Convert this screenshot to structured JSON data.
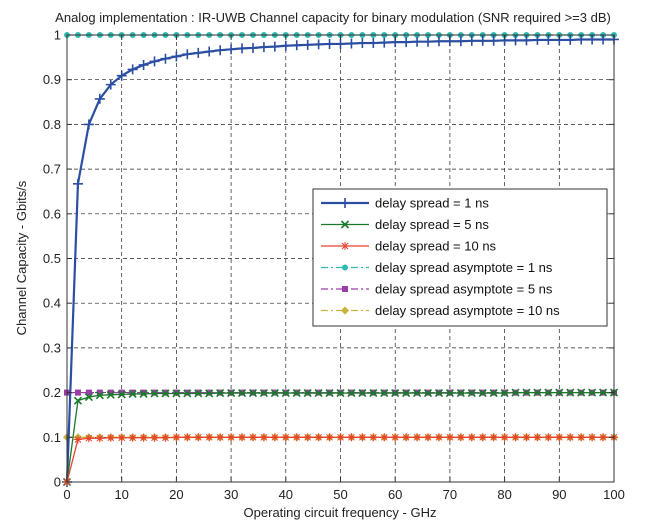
{
  "chart_data": {
    "type": "line",
    "title": "Analog implementation : IR-UWB Channel capacity for binary modulation (SNR required >=3 dB)",
    "xlabel": "Operating circuit frequency - GHz",
    "ylabel": "Channel Capacity - Gbits/s",
    "xlim": [
      0,
      100
    ],
    "ylim": [
      0,
      1
    ],
    "xticks": [
      "0",
      "10",
      "20",
      "30",
      "40",
      "50",
      "60",
      "70",
      "80",
      "90",
      "100"
    ],
    "yticks": [
      "0",
      "0.1",
      "0.2",
      "0.3",
      "0.4",
      "0.5",
      "0.6",
      "0.7",
      "0.8",
      "0.9",
      "1"
    ],
    "grid": true,
    "legend_position": "center-right",
    "x": [
      0,
      2,
      4,
      6,
      8,
      10,
      12,
      14,
      16,
      18,
      20,
      22,
      24,
      26,
      28,
      30,
      32,
      34,
      36,
      38,
      40,
      42,
      44,
      46,
      48,
      50,
      52,
      54,
      56,
      58,
      60,
      62,
      64,
      66,
      68,
      70,
      72,
      74,
      76,
      78,
      80,
      82,
      84,
      86,
      88,
      90,
      92,
      94,
      96,
      98,
      100
    ],
    "series": [
      {
        "name": "delay spread = 1 ns",
        "color": "#2b4ea3",
        "marker": "plus",
        "dash": "solid",
        "values": [
          0,
          0.667,
          0.8,
          0.857,
          0.889,
          0.909,
          0.923,
          0.933,
          0.941,
          0.947,
          0.952,
          0.957,
          0.96,
          0.963,
          0.966,
          0.968,
          0.97,
          0.971,
          0.973,
          0.974,
          0.976,
          0.977,
          0.978,
          0.979,
          0.98,
          0.98,
          0.981,
          0.982,
          0.982,
          0.983,
          0.984,
          0.984,
          0.985,
          0.985,
          0.986,
          0.986,
          0.986,
          0.987,
          0.987,
          0.987,
          0.988,
          0.988,
          0.988,
          0.989,
          0.989,
          0.989,
          0.989,
          0.99,
          0.99,
          0.99,
          0.99
        ]
      },
      {
        "name": "delay spread = 5 ns",
        "color": "#1a7a2a",
        "marker": "x",
        "dash": "solid",
        "values": [
          0,
          0.182,
          0.19,
          0.194,
          0.195,
          0.196,
          0.197,
          0.197,
          0.198,
          0.198,
          0.198,
          0.198,
          0.198,
          0.198,
          0.199,
          0.199,
          0.199,
          0.199,
          0.199,
          0.199,
          0.199,
          0.199,
          0.199,
          0.199,
          0.199,
          0.199,
          0.199,
          0.199,
          0.199,
          0.199,
          0.199,
          0.199,
          0.199,
          0.199,
          0.199,
          0.199,
          0.199,
          0.199,
          0.199,
          0.199,
          0.199,
          0.2,
          0.2,
          0.2,
          0.2,
          0.2,
          0.2,
          0.2,
          0.2,
          0.2,
          0.2
        ]
      },
      {
        "name": "delay spread = 10 ns",
        "color": "#e8422d",
        "marker": "star",
        "dash": "solid",
        "values": [
          0,
          0.095,
          0.098,
          0.098,
          0.099,
          0.099,
          0.099,
          0.099,
          0.099,
          0.099,
          0.1,
          0.1,
          0.1,
          0.1,
          0.1,
          0.1,
          0.1,
          0.1,
          0.1,
          0.1,
          0.1,
          0.1,
          0.1,
          0.1,
          0.1,
          0.1,
          0.1,
          0.1,
          0.1,
          0.1,
          0.1,
          0.1,
          0.1,
          0.1,
          0.1,
          0.1,
          0.1,
          0.1,
          0.1,
          0.1,
          0.1,
          0.1,
          0.1,
          0.1,
          0.1,
          0.1,
          0.1,
          0.1,
          0.1,
          0.1,
          0.1
        ]
      },
      {
        "name": "delay spread asymptote = 1 ns",
        "color": "#2fb9b0",
        "marker": "circle",
        "dash": "dashdot",
        "values": [
          1,
          1,
          1,
          1,
          1,
          1,
          1,
          1,
          1,
          1,
          1,
          1,
          1,
          1,
          1,
          1,
          1,
          1,
          1,
          1,
          1,
          1,
          1,
          1,
          1,
          1,
          1,
          1,
          1,
          1,
          1,
          1,
          1,
          1,
          1,
          1,
          1,
          1,
          1,
          1,
          1,
          1,
          1,
          1,
          1,
          1,
          1,
          1,
          1,
          1,
          1
        ]
      },
      {
        "name": "delay spread asymptote = 5 ns",
        "color": "#9b3ca8",
        "marker": "square",
        "dash": "dashdot",
        "values": [
          0.2,
          0.2,
          0.2,
          0.2,
          0.2,
          0.2,
          0.2,
          0.2,
          0.2,
          0.2,
          0.2,
          0.2,
          0.2,
          0.2,
          0.2,
          0.2,
          0.2,
          0.2,
          0.2,
          0.2,
          0.2,
          0.2,
          0.2,
          0.2,
          0.2,
          0.2,
          0.2,
          0.2,
          0.2,
          0.2,
          0.2,
          0.2,
          0.2,
          0.2,
          0.2,
          0.2,
          0.2,
          0.2,
          0.2,
          0.2,
          0.2,
          0.2,
          0.2,
          0.2,
          0.2,
          0.2,
          0.2,
          0.2,
          0.2,
          0.2,
          0.2
        ]
      },
      {
        "name": "delay spread asymptote = 10 ns",
        "color": "#c9b33a",
        "marker": "diamond",
        "dash": "dashdot",
        "values": [
          0.1,
          0.1,
          0.1,
          0.1,
          0.1,
          0.1,
          0.1,
          0.1,
          0.1,
          0.1,
          0.1,
          0.1,
          0.1,
          0.1,
          0.1,
          0.1,
          0.1,
          0.1,
          0.1,
          0.1,
          0.1,
          0.1,
          0.1,
          0.1,
          0.1,
          0.1,
          0.1,
          0.1,
          0.1,
          0.1,
          0.1,
          0.1,
          0.1,
          0.1,
          0.1,
          0.1,
          0.1,
          0.1,
          0.1,
          0.1,
          0.1,
          0.1,
          0.1,
          0.1,
          0.1,
          0.1,
          0.1,
          0.1,
          0.1,
          0.1,
          0.1
        ]
      }
    ]
  }
}
